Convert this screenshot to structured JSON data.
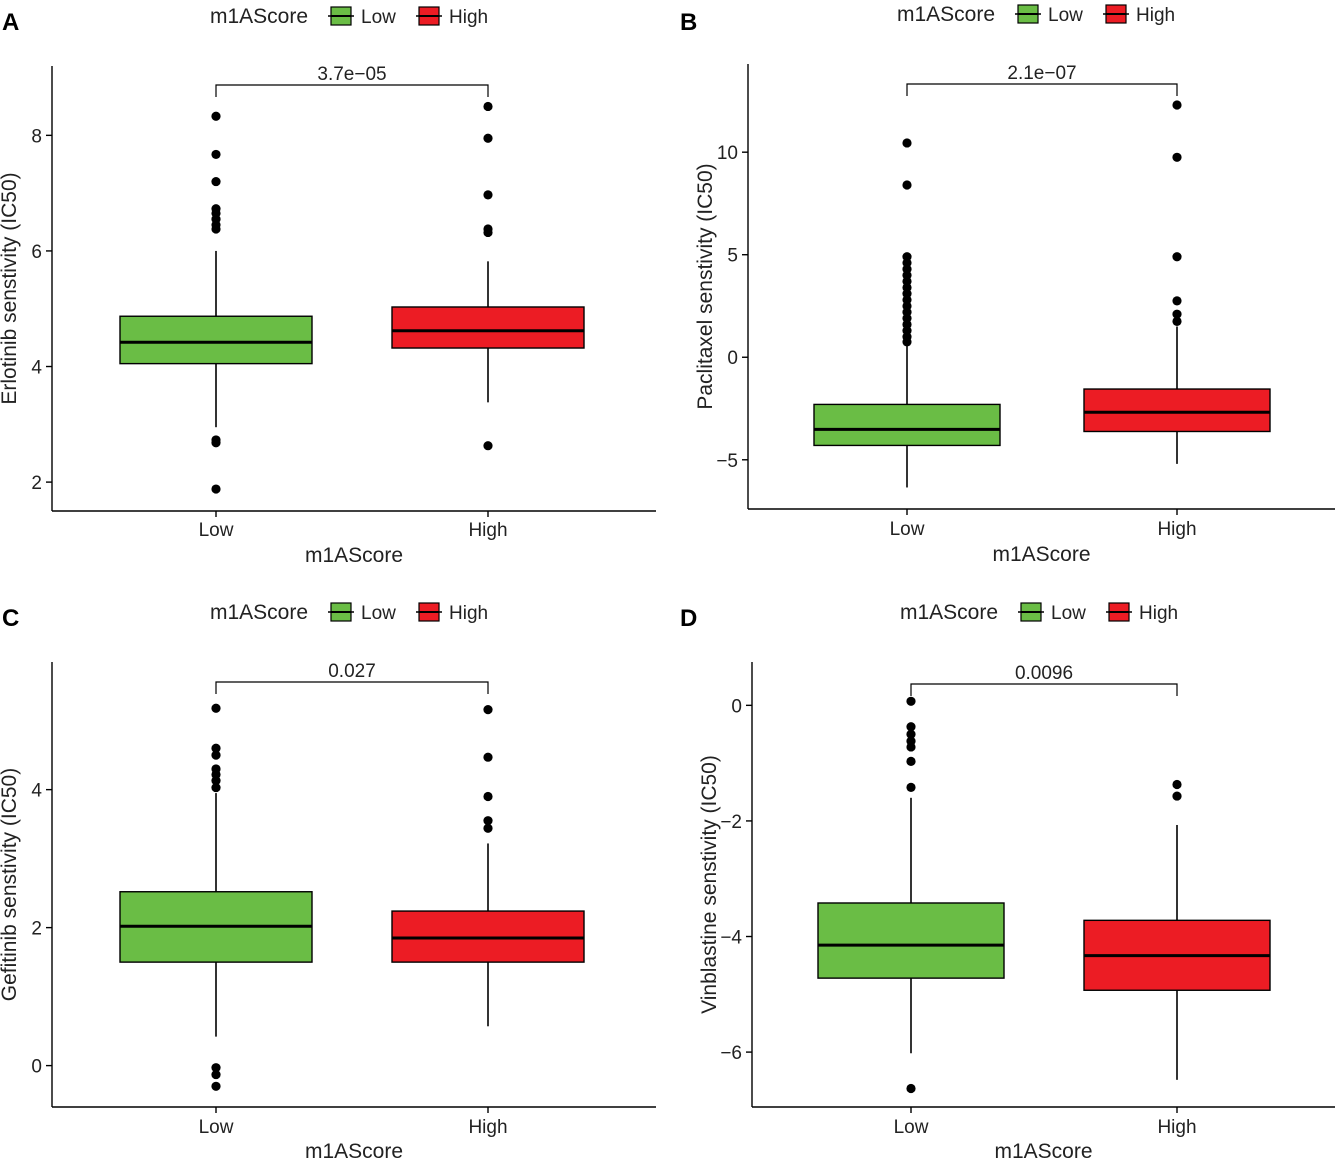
{
  "chart_data": [
    {
      "panel": "A",
      "type": "boxplot",
      "legend_title": "m1AScore",
      "legend_entries": [
        {
          "label": "Low",
          "color": "#6abd45"
        },
        {
          "label": "High",
          "color": "#ec1c24"
        }
      ],
      "categories": [
        "Low",
        "High"
      ],
      "xlabel": "m1AScore",
      "ylabel": "Erlotinib senstivity (IC50)",
      "ylim": [
        1.5,
        9.2
      ],
      "yticks": [
        2,
        4,
        6,
        8
      ],
      "pvalue": "3.7e−05",
      "boxes": [
        {
          "name": "Low",
          "min": 2.95,
          "q1": 4.05,
          "median": 4.42,
          "q3": 4.87,
          "max": 6.0,
          "outliers": [
            8.33,
            7.67,
            7.2,
            6.73,
            6.65,
            6.55,
            6.45,
            6.38,
            2.73,
            2.68,
            1.88
          ]
        },
        {
          "name": "High",
          "min": 3.38,
          "q1": 4.32,
          "median": 4.62,
          "q3": 5.03,
          "max": 5.82,
          "outliers": [
            8.5,
            7.95,
            6.97,
            6.38,
            6.32,
            2.63
          ]
        }
      ]
    },
    {
      "panel": "B",
      "type": "boxplot",
      "legend_title": "m1AScore",
      "legend_entries": [
        {
          "label": "Low",
          "color": "#6abd45"
        },
        {
          "label": "High",
          "color": "#ec1c24"
        }
      ],
      "categories": [
        "Low",
        "High"
      ],
      "xlabel": "m1AScore",
      "ylabel": "Paclitaxel senstivity (IC50)",
      "ylim": [
        -7.4,
        14.3
      ],
      "yticks": [
        -5,
        0,
        5,
        10
      ],
      "pvalue": "2.1e−07",
      "boxes": [
        {
          "name": "Low",
          "min": -6.35,
          "q1": -4.3,
          "median": -3.52,
          "q3": -2.3,
          "max": 0.6,
          "outliers": [
            10.45,
            8.4,
            4.9,
            4.6,
            4.3,
            4.0,
            3.7,
            3.4,
            3.1,
            2.8,
            2.5,
            2.2,
            1.9,
            1.6,
            1.3,
            1.0,
            0.75
          ]
        },
        {
          "name": "High",
          "min": -5.2,
          "q1": -3.62,
          "median": -2.68,
          "q3": -1.55,
          "max": 1.5,
          "outliers": [
            12.3,
            9.75,
            4.9,
            2.75,
            2.1,
            1.75
          ]
        }
      ]
    },
    {
      "panel": "C",
      "type": "boxplot",
      "legend_title": "m1AScore",
      "legend_entries": [
        {
          "label": "Low",
          "color": "#6abd45"
        },
        {
          "label": "High",
          "color": "#ec1c24"
        }
      ],
      "categories": [
        "Low",
        "High"
      ],
      "xlabel": "m1AScore",
      "ylabel": "Gefitinib senstivity (IC50)",
      "ylim": [
        -0.6,
        5.85
      ],
      "yticks": [
        0,
        2,
        4
      ],
      "pvalue": "0.027",
      "boxes": [
        {
          "name": "Low",
          "min": 0.42,
          "q1": 1.5,
          "median": 2.02,
          "q3": 2.52,
          "max": 3.95,
          "outliers": [
            5.18,
            4.6,
            4.5,
            4.3,
            4.22,
            4.13,
            4.03,
            -0.03,
            -0.13,
            -0.3
          ]
        },
        {
          "name": "High",
          "min": 0.57,
          "q1": 1.5,
          "median": 1.85,
          "q3": 2.24,
          "max": 3.22,
          "outliers": [
            5.16,
            4.47,
            3.9,
            3.55,
            3.44
          ]
        }
      ]
    },
    {
      "panel": "D",
      "type": "boxplot",
      "legend_title": "m1AScore",
      "legend_entries": [
        {
          "label": "Low",
          "color": "#6abd45"
        },
        {
          "label": "High",
          "color": "#ec1c24"
        }
      ],
      "categories": [
        "Low",
        "High"
      ],
      "xlabel": "m1AScore",
      "ylabel": "Vinblastine senstivity (IC50)",
      "ylim": [
        -6.95,
        0.75
      ],
      "yticks": [
        0,
        -2,
        -4,
        -6
      ],
      "pvalue": "0.0096",
      "boxes": [
        {
          "name": "Low",
          "min": -6.02,
          "q1": -4.72,
          "median": -4.15,
          "q3": -3.42,
          "max": -1.6,
          "outliers": [
            0.07,
            -0.37,
            -0.5,
            -0.62,
            -0.72,
            -0.97,
            -1.42,
            -6.63
          ]
        },
        {
          "name": "High",
          "min": -6.48,
          "q1": -4.93,
          "median": -4.33,
          "q3": -3.72,
          "max": -2.07,
          "outliers": [
            -1.37,
            -1.57
          ]
        }
      ]
    }
  ]
}
